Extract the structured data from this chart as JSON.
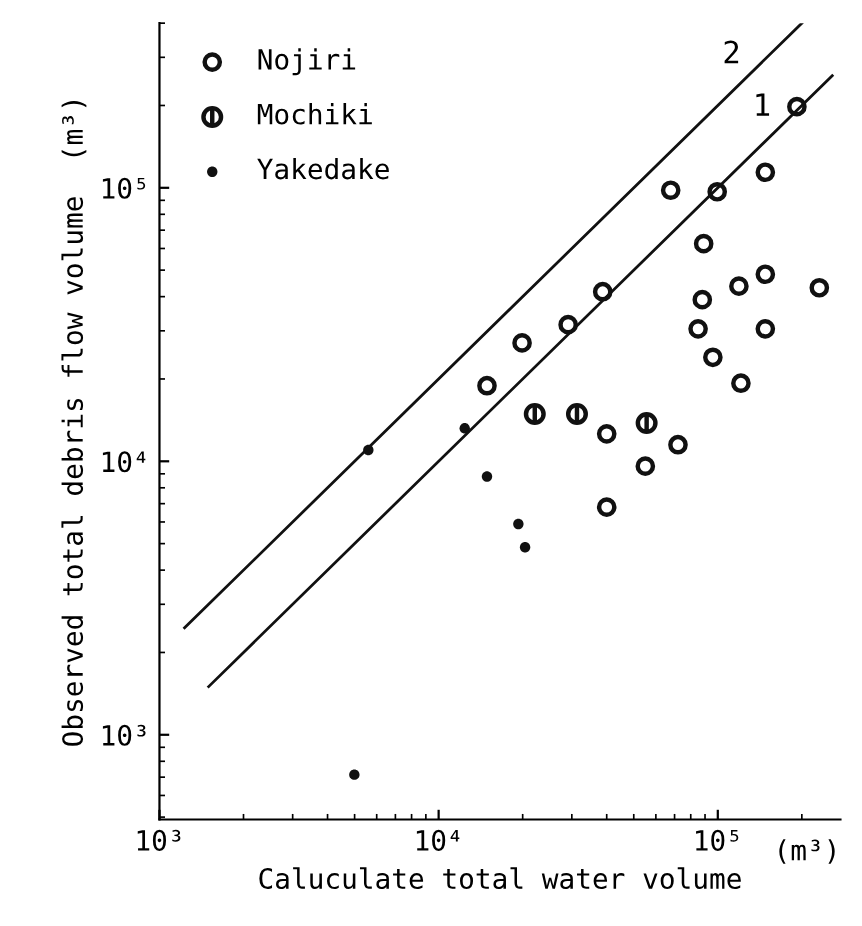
{
  "chart_data": {
    "type": "scatter",
    "xlabel": "Caluculate total water volume",
    "ylabel": "Observed total debris flow volume  (m³)",
    "log": "xy",
    "xlim": [
      1000,
      275000
    ],
    "ylim": [
      490,
      400000
    ],
    "xticks": [
      {
        "value": 1000,
        "label": "10³"
      },
      {
        "value": 10000,
        "label": "10⁴"
      },
      {
        "value": 100000,
        "label": "10⁵"
      }
    ],
    "annotations": [
      "(m³)"
    ],
    "yticks": [
      {
        "value": 1000,
        "label": "10³"
      },
      {
        "value": 10000,
        "label": "10⁴"
      },
      {
        "value": 100000,
        "label": "10⁵"
      }
    ],
    "legend": "top left",
    "grid": false,
    "series": [
      {
        "name": "Nojiri",
        "marker": "circle",
        "color": "#111111",
        "x": [
          192000,
          148000,
          67800,
          99500,
          89000,
          148000,
          119000,
          231000,
          88000,
          85000,
          148000,
          96000,
          121000,
          38700,
          29100,
          19900,
          14900,
          40000,
          72000,
          55000,
          40000
        ],
        "values": [
          198000,
          114000,
          98000,
          96700,
          62500,
          48300,
          43700,
          43100,
          39000,
          30500,
          30500,
          24000,
          19300,
          41700,
          31600,
          27100,
          18900,
          12600,
          11500,
          9600,
          6800
        ]
      },
      {
        "name": "Mochiki",
        "color": "#111111",
        "x": [
          22100,
          31300,
          55600
        ],
        "values": [
          14900,
          14900,
          13800
        ]
      },
      {
        "name": "Yakedake",
        "marker": "circle",
        "color": "#111111",
        "x": [
          5600,
          12400,
          14900,
          19300,
          20400,
          4990
        ],
        "values": [
          11000,
          13200,
          8800,
          5900,
          4850,
          715
        ]
      },
      {
        "name": "1",
        "type": "line",
        "line_style": "solid",
        "color": "#111111",
        "x": [
          1500,
          257000
        ],
        "values": [
          1500,
          257000
        ]
      },
      {
        "name": "2",
        "type": "line",
        "line_style": "solid",
        "color": "#111111",
        "x": [
          1230,
          200000
        ],
        "values": [
          2460,
          400000
        ]
      }
    ]
  }
}
